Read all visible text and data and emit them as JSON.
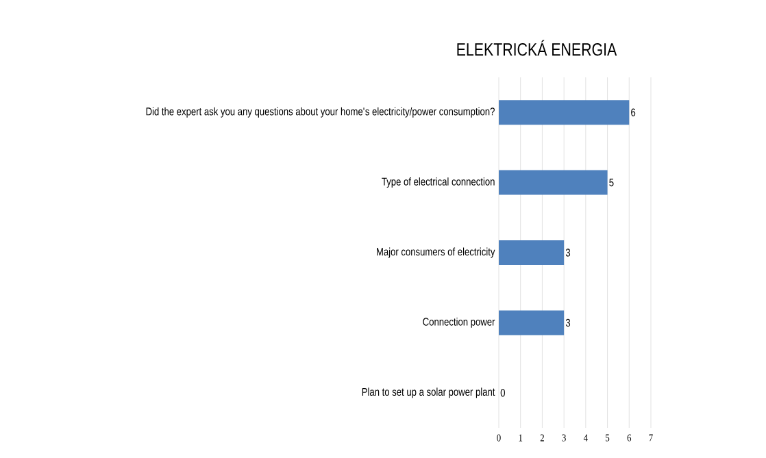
{
  "chart_data": {
    "type": "bar",
    "orientation": "horizontal",
    "title": "ELEKTRICKÁ ENERGIA",
    "categories": [
      "Did the expert ask you any questions about your home's electricity/power consumption?",
      "Type of electrical connection",
      "Major consumers of electricity",
      "Connection power",
      "Plan to set up a solar power plant"
    ],
    "values": [
      6,
      5,
      3,
      3,
      0
    ],
    "color": "#4f81bd",
    "xlim": [
      0,
      7
    ],
    "xticks": [
      0,
      1,
      2,
      3,
      4,
      5,
      6,
      7
    ],
    "grid": "x",
    "data_labels": true
  }
}
